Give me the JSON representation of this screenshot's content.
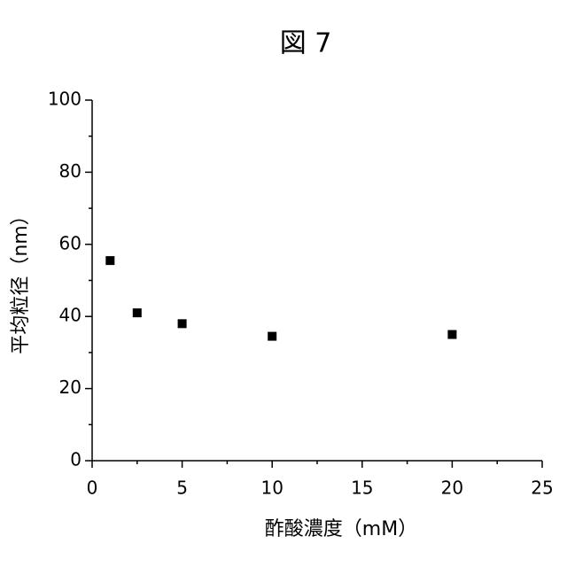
{
  "chart_data": {
    "type": "scatter",
    "title": "図 7",
    "x_label": "酢酸濃度（mM）",
    "y_label": "平均粒径（nm）",
    "series": [
      {
        "name": "平均粒径",
        "color": "#000000",
        "x": [
          1,
          2.5,
          5,
          10,
          20
        ],
        "values": [
          55.5,
          41,
          38,
          34.5,
          35
        ]
      }
    ],
    "xlim": [
      0,
      25
    ],
    "xticks": [
      0,
      5,
      10,
      15,
      20,
      25
    ],
    "minor_xticks": [
      2.5,
      7.5,
      12.5,
      17.5,
      22.5
    ],
    "ylim": [
      0,
      100
    ],
    "yticks": [
      0,
      20,
      40,
      60,
      80,
      100
    ],
    "minor_yticks": [
      10,
      30,
      50,
      70,
      90
    ]
  }
}
